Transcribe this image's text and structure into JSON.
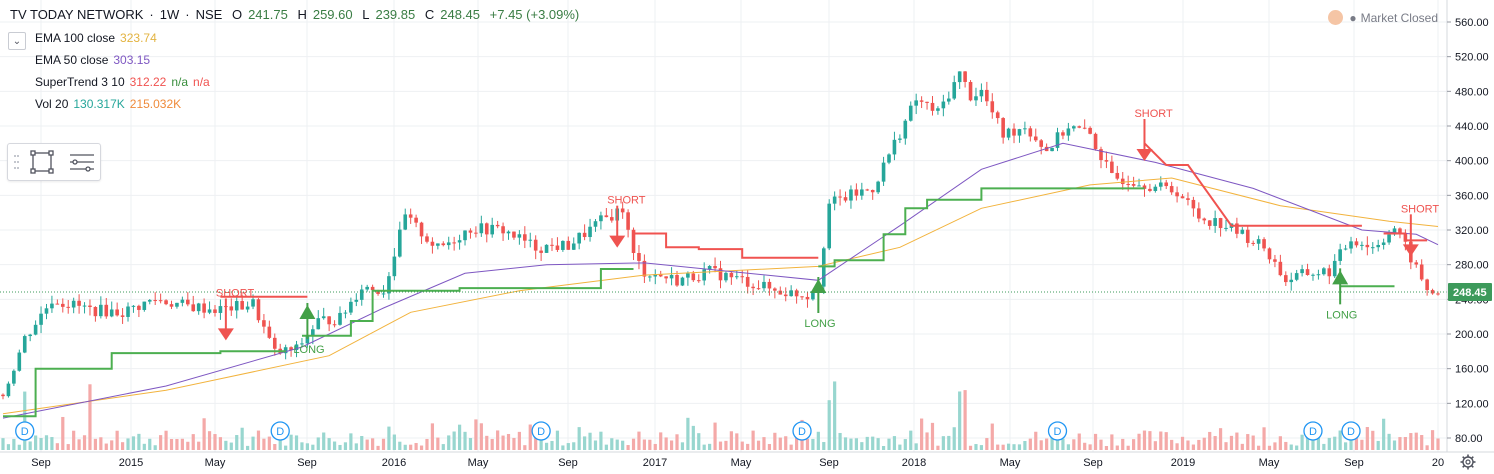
{
  "header": {
    "symbol": "TV TODAY NETWORK",
    "interval": "1W",
    "exchange": "NSE",
    "ohlc": {
      "o_label": "O",
      "o": "241.75",
      "h_label": "H",
      "h": "259.60",
      "l_label": "L",
      "l": "239.85",
      "c_label": "C",
      "c": "248.45",
      "change": "+7.45 (+3.09%)"
    }
  },
  "indicators": [
    {
      "name": "EMA 100 close",
      "values": [
        "323.74"
      ],
      "colors": [
        "#e3b340"
      ]
    },
    {
      "name": "EMA 50 close",
      "values": [
        "303.15"
      ],
      "colors": [
        "#7e57c2"
      ]
    },
    {
      "name": "SuperTrend 3 10",
      "values": [
        "312.22",
        "n/a",
        "n/a"
      ],
      "colors": [
        "#f05350",
        "#388e3c",
        "#f05350"
      ]
    },
    {
      "name": "Vol 20",
      "values": [
        "130.317K",
        "215.032K"
      ],
      "colors": [
        "#26a69a",
        "#ef8a3a"
      ]
    }
  ],
  "market_status": "Market Closed",
  "price_badge": "248.45",
  "colors": {
    "up": "#26a69a",
    "down": "#ef5350",
    "ema100": "#f2b33d",
    "ema50": "#7e57c2",
    "st_green": "#4caf50",
    "st_red": "#f05350",
    "label_green": "#43a047",
    "label_red": "#ef5350",
    "badge": "#3d9a5b",
    "grid": "#eef0f3"
  },
  "chart_data": {
    "type": "candlestick",
    "title": "TV TODAY NETWORK · 1W · NSE",
    "y_axis": {
      "ticks": [
        80,
        120,
        160,
        200,
        240,
        280,
        320,
        360,
        400,
        440,
        480,
        520,
        560
      ],
      "range": [
        70,
        570
      ]
    },
    "x_axis": {
      "ticks": [
        "Sep",
        "2015",
        "May",
        "Sep",
        "2016",
        "May",
        "Sep",
        "2017",
        "May",
        "Sep",
        "2018",
        "May",
        "Sep",
        "2019",
        "May",
        "Sep",
        "20"
      ]
    },
    "close_series": [
      {
        "t": 0,
        "v": 130
      },
      {
        "t": 4,
        "v": 195
      },
      {
        "t": 9,
        "v": 240
      },
      {
        "t": 16,
        "v": 228
      },
      {
        "t": 22,
        "v": 225
      },
      {
        "t": 28,
        "v": 240
      },
      {
        "t": 34,
        "v": 232
      },
      {
        "t": 40,
        "v": 228
      },
      {
        "t": 46,
        "v": 235
      },
      {
        "t": 50,
        "v": 178
      },
      {
        "t": 54,
        "v": 182
      },
      {
        "t": 58,
        "v": 215
      },
      {
        "t": 62,
        "v": 218
      },
      {
        "t": 66,
        "v": 255
      },
      {
        "t": 70,
        "v": 250
      },
      {
        "t": 74,
        "v": 335
      },
      {
        "t": 80,
        "v": 298
      },
      {
        "t": 86,
        "v": 322
      },
      {
        "t": 92,
        "v": 320
      },
      {
        "t": 98,
        "v": 300
      },
      {
        "t": 104,
        "v": 302
      },
      {
        "t": 110,
        "v": 330
      },
      {
        "t": 114,
        "v": 345
      },
      {
        "t": 116,
        "v": 290
      },
      {
        "t": 118,
        "v": 272
      },
      {
        "t": 124,
        "v": 262
      },
      {
        "t": 130,
        "v": 272
      },
      {
        "t": 136,
        "v": 262
      },
      {
        "t": 142,
        "v": 250
      },
      {
        "t": 148,
        "v": 245
      },
      {
        "t": 150,
        "v": 260
      },
      {
        "t": 152,
        "v": 350
      },
      {
        "t": 156,
        "v": 360
      },
      {
        "t": 160,
        "v": 368
      },
      {
        "t": 164,
        "v": 420
      },
      {
        "t": 168,
        "v": 470
      },
      {
        "t": 172,
        "v": 455
      },
      {
        "t": 176,
        "v": 500
      },
      {
        "t": 178,
        "v": 475
      },
      {
        "t": 180,
        "v": 480
      },
      {
        "t": 184,
        "v": 430
      },
      {
        "t": 188,
        "v": 440
      },
      {
        "t": 192,
        "v": 412
      },
      {
        "t": 196,
        "v": 440
      },
      {
        "t": 200,
        "v": 430
      },
      {
        "t": 204,
        "v": 380
      },
      {
        "t": 208,
        "v": 378
      },
      {
        "t": 212,
        "v": 370
      },
      {
        "t": 216,
        "v": 365
      },
      {
        "t": 220,
        "v": 335
      },
      {
        "t": 224,
        "v": 328
      },
      {
        "t": 228,
        "v": 315
      },
      {
        "t": 232,
        "v": 300
      },
      {
        "t": 236,
        "v": 262
      },
      {
        "t": 240,
        "v": 270
      },
      {
        "t": 244,
        "v": 272
      },
      {
        "t": 248,
        "v": 310
      },
      {
        "t": 252,
        "v": 300
      },
      {
        "t": 256,
        "v": 322
      },
      {
        "t": 258,
        "v": 300
      },
      {
        "t": 260,
        "v": 275
      },
      {
        "t": 262,
        "v": 250
      },
      {
        "t": 264,
        "v": 248
      }
    ],
    "series": [
      {
        "name": "EMA 100 close",
        "points": [
          [
            0,
            108
          ],
          [
            30,
            135
          ],
          [
            60,
            175
          ],
          [
            75,
            225
          ],
          [
            95,
            250
          ],
          [
            118,
            268
          ],
          [
            150,
            278
          ],
          [
            165,
            300
          ],
          [
            180,
            345
          ],
          [
            200,
            372
          ],
          [
            215,
            380
          ],
          [
            235,
            348
          ],
          [
            255,
            330
          ],
          [
            264,
            324
          ]
        ]
      },
      {
        "name": "EMA 50 close",
        "points": [
          [
            0,
            103
          ],
          [
            30,
            140
          ],
          [
            55,
            185
          ],
          [
            70,
            230
          ],
          [
            85,
            270
          ],
          [
            100,
            280
          ],
          [
            118,
            282
          ],
          [
            150,
            262
          ],
          [
            165,
            325
          ],
          [
            180,
            390
          ],
          [
            195,
            420
          ],
          [
            212,
            398
          ],
          [
            230,
            368
          ],
          [
            250,
            320
          ],
          [
            260,
            315
          ],
          [
            264,
            303
          ]
        ]
      },
      {
        "name": "SuperTrend 3 10",
        "segments": [
          {
            "trend": "up",
            "points": [
              [
                0,
                105
              ],
              [
                6,
                105
              ],
              [
                6,
                160
              ],
              [
                20,
                160
              ],
              [
                20,
                178
              ],
              [
                40,
                178
              ],
              [
                40,
                180
              ],
              [
                52,
                180
              ]
            ]
          },
          {
            "trend": "down",
            "points": [
              [
                40,
                243
              ],
              [
                56,
                243
              ]
            ]
          },
          {
            "trend": "up",
            "points": [
              [
                55,
                198
              ],
              [
                64,
                198
              ],
              [
                64,
                215
              ],
              [
                68,
                215
              ],
              [
                68,
                250
              ],
              [
                84,
                250
              ],
              [
                84,
                253
              ],
              [
                110,
                253
              ],
              [
                110,
                275
              ],
              [
                116,
                275
              ]
            ]
          },
          {
            "trend": "down",
            "points": [
              [
                116,
                316
              ],
              [
                122,
                316
              ],
              [
                122,
                300
              ],
              [
                128,
                300
              ],
              [
                128,
                298
              ],
              [
                136,
                298
              ],
              [
                136,
                288
              ],
              [
                150,
                288
              ]
            ]
          },
          {
            "trend": "up",
            "points": [
              [
                150,
                278
              ],
              [
                153,
                278
              ],
              [
                153,
                285
              ],
              [
                162,
                285
              ],
              [
                162,
                315
              ],
              [
                166,
                315
              ],
              [
                166,
                345
              ],
              [
                170,
                345
              ],
              [
                170,
                355
              ],
              [
                180,
                355
              ],
              [
                180,
                368
              ],
              [
                210,
                368
              ]
            ]
          },
          {
            "trend": "down",
            "points": [
              [
                210,
                420
              ],
              [
                214,
                395
              ],
              [
                218,
                395
              ],
              [
                222,
                360
              ],
              [
                226,
                325
              ],
              [
                250,
                325
              ]
            ]
          },
          {
            "trend": "up",
            "points": [
              [
                246,
                255
              ],
              [
                256,
                255
              ]
            ]
          },
          {
            "trend": "down",
            "points": [
              [
                254,
                316
              ],
              [
                258,
                316
              ],
              [
                258,
                308
              ],
              [
                262,
                308
              ]
            ]
          }
        ]
      }
    ],
    "signals": [
      {
        "t": 41,
        "v": 218,
        "type": "SHORT"
      },
      {
        "t": 56,
        "v": 215,
        "type": "LONG"
      },
      {
        "t": 113,
        "v": 325,
        "type": "SHORT"
      },
      {
        "t": 150,
        "v": 245,
        "type": "LONG"
      },
      {
        "t": 210,
        "v": 425,
        "type": "SHORT"
      },
      {
        "t": 246,
        "v": 255,
        "type": "LONG"
      },
      {
        "t": 259,
        "v": 315,
        "type": "SHORT"
      }
    ],
    "dividends": [
      4,
      51,
      99,
      147,
      194,
      241,
      248
    ],
    "current_price": 248.45
  }
}
